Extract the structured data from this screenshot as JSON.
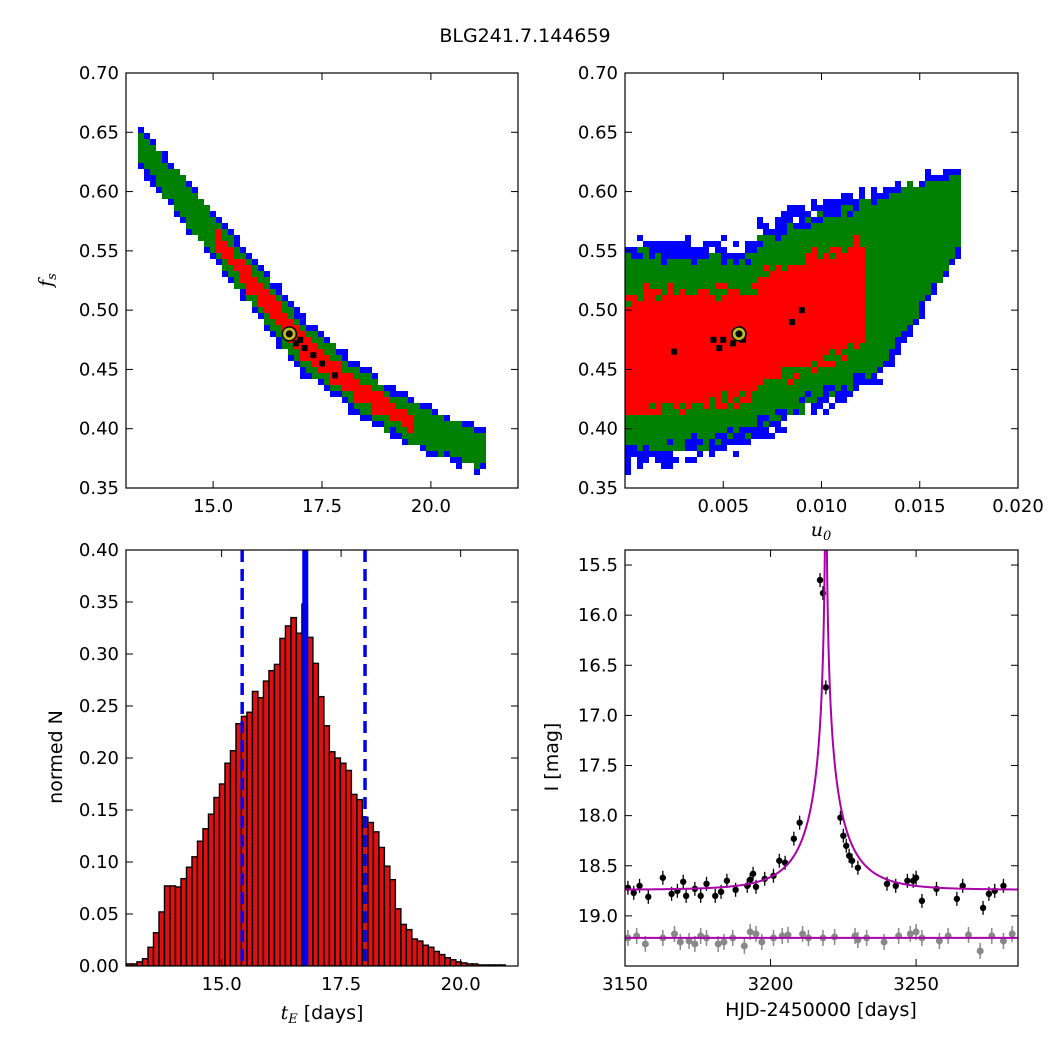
{
  "figure_title": "BLG241.7.144659",
  "colors": {
    "sigma3": "#0000ff",
    "sigma2": "#008000",
    "sigma1": "#ff0000",
    "best": "#000000",
    "bar_fill": "#dd1111",
    "vline": "#0000ee",
    "model": "#aa00aa",
    "primary_points": "#000000",
    "secondary_points": "#888888",
    "marker_ring": "#bbbb22"
  },
  "chart_data": [
    {
      "type": "scatter",
      "panel": "tE-fs",
      "xlabel": "",
      "ylabel": "f_s",
      "xlim": [
        13.0,
        22.0
      ],
      "ylim": [
        0.35,
        0.7
      ],
      "xticks": [
        "15.0",
        "17.5",
        "20.0"
      ],
      "yticks": [
        "0.35",
        "0.40",
        "0.45",
        "0.50",
        "0.55",
        "0.60",
        "0.65",
        "0.70"
      ],
      "regions": "density map of posterior samples: blue outer, green middle, red inner, black best region",
      "ridge_center": [
        [
          13.3,
          0.635
        ],
        [
          14.0,
          0.605
        ],
        [
          15.0,
          0.56
        ],
        [
          16.0,
          0.515
        ],
        [
          17.0,
          0.47
        ],
        [
          18.0,
          0.44
        ],
        [
          19.0,
          0.415
        ],
        [
          20.0,
          0.397
        ],
        [
          21.0,
          0.383
        ]
      ],
      "best_fit": {
        "x": 16.75,
        "y": 0.48
      }
    },
    {
      "type": "scatter",
      "panel": "u0-fs",
      "xlabel": "u_0",
      "ylabel": "",
      "xlim": [
        0.0,
        0.02
      ],
      "ylim": [
        0.35,
        0.7
      ],
      "xticks": [
        "0.005",
        "0.010",
        "0.015",
        "0.020"
      ],
      "yticks": [
        "0.35",
        "0.40",
        "0.45",
        "0.50",
        "0.55",
        "0.60",
        "0.65",
        "0.70"
      ],
      "regions": "density map of posterior samples: blue outer, green middle, red inner, black best region",
      "best_fit": {
        "x": 0.0058,
        "y": 0.48
      }
    },
    {
      "type": "bar",
      "panel": "tE-histogram",
      "xlabel": "t_E [days]",
      "ylabel": "normed N",
      "xlim": [
        13.0,
        21.2
      ],
      "ylim": [
        0.0,
        0.4
      ],
      "xticks": [
        "15.0",
        "17.5",
        "20.0"
      ],
      "yticks": [
        "0.00",
        "0.05",
        "0.10",
        "0.15",
        "0.20",
        "0.25",
        "0.30",
        "0.35",
        "0.40"
      ],
      "bin_start": 13.0,
      "bin_width": 0.115,
      "values": [
        0.002,
        0.002,
        0.004,
        0.007,
        0.018,
        0.032,
        0.052,
        0.077,
        0.077,
        0.076,
        0.084,
        0.095,
        0.105,
        0.12,
        0.132,
        0.146,
        0.162,
        0.175,
        0.195,
        0.207,
        0.233,
        0.24,
        0.244,
        0.264,
        0.258,
        0.274,
        0.284,
        0.29,
        0.315,
        0.327,
        0.335,
        0.32,
        0.348,
        0.316,
        0.291,
        0.259,
        0.231,
        0.206,
        0.2,
        0.195,
        0.188,
        0.165,
        0.16,
        0.143,
        0.138,
        0.129,
        0.114,
        0.096,
        0.083,
        0.055,
        0.04,
        0.035,
        0.026,
        0.024,
        0.02,
        0.018,
        0.014,
        0.011,
        0.008,
        0.006,
        0.004,
        0.003,
        0.002,
        0.002,
        0.001,
        0.001,
        0.001,
        0.001,
        0.001,
        0.0
      ],
      "solid_line": 16.75,
      "dashed_lines": [
        15.43,
        18.0
      ]
    },
    {
      "type": "line",
      "panel": "lightcurve",
      "xlabel": "HJD-2450000 [days]",
      "ylabel": "I [mag]",
      "xlim": [
        3150,
        3285
      ],
      "ylim": [
        19.5,
        15.35
      ],
      "xticks": [
        "3150",
        "3200",
        "3250"
      ],
      "yticks": [
        "15.5",
        "16.0",
        "16.5",
        "17.0",
        "17.5",
        "18.0",
        "18.5",
        "19.0"
      ],
      "model": {
        "t0": 3219.0,
        "tE": 16.75,
        "u0": 0.0058,
        "fs": 0.48,
        "base_mag": 18.74
      },
      "secondary_model_mag": 19.22,
      "points": [
        [
          3151,
          18.72
        ],
        [
          3153,
          18.77
        ],
        [
          3155,
          18.7
        ],
        [
          3158,
          18.81
        ],
        [
          3163,
          18.62
        ],
        [
          3166,
          18.78
        ],
        [
          3168,
          18.75
        ],
        [
          3170,
          18.66
        ],
        [
          3171,
          18.8
        ],
        [
          3174,
          18.73
        ],
        [
          3176,
          18.8
        ],
        [
          3178,
          18.68
        ],
        [
          3181,
          18.8
        ],
        [
          3183,
          18.76
        ],
        [
          3185,
          18.65
        ],
        [
          3188,
          18.74
        ],
        [
          3192,
          18.7
        ],
        [
          3193,
          18.64
        ],
        [
          3194,
          18.58
        ],
        [
          3195,
          18.71
        ],
        [
          3198,
          18.63
        ],
        [
          3201,
          18.6
        ],
        [
          3203,
          18.45
        ],
        [
          3205,
          18.47
        ],
        [
          3208,
          18.23
        ],
        [
          3210,
          18.07
        ],
        [
          3217,
          15.65
        ],
        [
          3218,
          15.78
        ],
        [
          3219,
          16.72
        ],
        [
          3224,
          18.02
        ],
        [
          3225,
          18.2
        ],
        [
          3226,
          18.3
        ],
        [
          3227,
          18.4
        ],
        [
          3228,
          18.45
        ],
        [
          3230,
          18.52
        ],
        [
          3240,
          18.68
        ],
        [
          3243,
          18.7
        ],
        [
          3247,
          18.65
        ],
        [
          3249,
          18.65
        ],
        [
          3250,
          18.62
        ],
        [
          3252,
          18.85
        ],
        [
          3257,
          18.73
        ],
        [
          3264,
          18.83
        ],
        [
          3266,
          18.7
        ],
        [
          3273,
          18.92
        ],
        [
          3275,
          18.78
        ],
        [
          3277,
          18.75
        ],
        [
          3280,
          18.7
        ]
      ],
      "secondary_points": [
        [
          3151,
          19.22
        ],
        [
          3154,
          19.2
        ],
        [
          3157,
          19.28
        ],
        [
          3163,
          19.22
        ],
        [
          3167,
          19.18
        ],
        [
          3169,
          19.26
        ],
        [
          3172,
          19.25
        ],
        [
          3174,
          19.28
        ],
        [
          3176,
          19.2
        ],
        [
          3178,
          19.22
        ],
        [
          3182,
          19.28
        ],
        [
          3184,
          19.26
        ],
        [
          3187,
          19.22
        ],
        [
          3191,
          19.3
        ],
        [
          3193,
          19.16
        ],
        [
          3195,
          19.18
        ],
        [
          3197,
          19.26
        ],
        [
          3201,
          19.22
        ],
        [
          3204,
          19.2
        ],
        [
          3206,
          19.19
        ],
        [
          3211,
          19.18
        ],
        [
          3213,
          19.22
        ],
        [
          3218,
          19.22
        ],
        [
          3222,
          19.21
        ],
        [
          3229,
          19.2
        ],
        [
          3230,
          19.24
        ],
        [
          3233,
          19.22
        ],
        [
          3239,
          19.26
        ],
        [
          3244,
          19.2
        ],
        [
          3248,
          19.18
        ],
        [
          3250,
          19.16
        ],
        [
          3252,
          19.22
        ],
        [
          3258,
          19.25
        ],
        [
          3261,
          19.2
        ],
        [
          3268,
          19.19
        ],
        [
          3272,
          19.35
        ],
        [
          3276,
          19.2
        ],
        [
          3280,
          19.25
        ],
        [
          3283,
          19.18
        ]
      ]
    }
  ]
}
